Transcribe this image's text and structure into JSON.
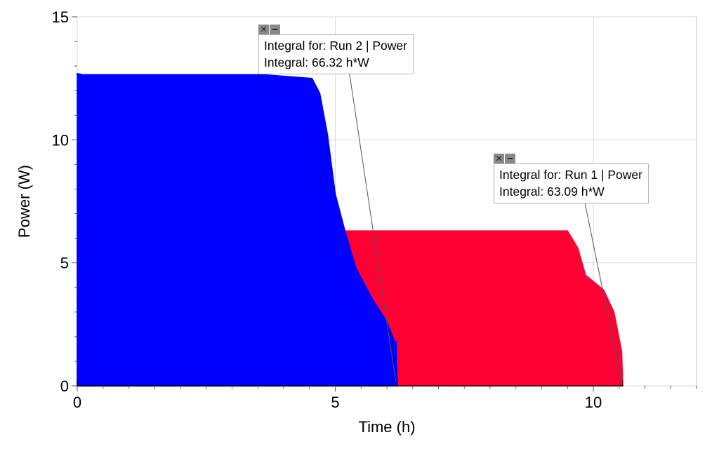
{
  "chart_data": {
    "type": "area",
    "xlabel": "Time (h)",
    "ylabel": "Power (W)",
    "xlim": [
      0,
      12
    ],
    "ylim": [
      0,
      15
    ],
    "xticks": [
      0,
      5,
      10
    ],
    "yticks": [
      0,
      5,
      10,
      15
    ],
    "grid": true,
    "series": [
      {
        "name": "Run 1",
        "color": "#ff0033",
        "x": [
          0,
          4.6,
          5.15,
          5.3,
          9.3,
          9.5,
          9.7,
          9.85,
          10.2,
          10.4,
          10.55,
          10.57
        ],
        "values": [
          6.3,
          6.3,
          6.3,
          6.3,
          6.3,
          6.3,
          5.6,
          4.5,
          3.9,
          3.0,
          1.4,
          0.0
        ]
      },
      {
        "name": "Run 2",
        "color": "#0000ff",
        "x": [
          0,
          0.1,
          3.6,
          4.55,
          4.7,
          4.85,
          5.0,
          5.2,
          5.4,
          5.7,
          6.0,
          6.15,
          6.18,
          6.2
        ],
        "values": [
          12.7,
          12.65,
          12.65,
          12.5,
          11.9,
          10.2,
          7.8,
          6.2,
          4.8,
          3.6,
          2.6,
          1.8,
          1.8,
          0.0
        ]
      }
    ],
    "annotations": [
      {
        "title": "Integral for: Run 2 | Power",
        "value": "Integral: 66.32 h*W",
        "run": "Run 2"
      },
      {
        "title": "Integral for: Run 1 | Power",
        "value": "Integral: 63.09 h*W",
        "run": "Run 1"
      }
    ]
  },
  "icons": {
    "close": "close-icon",
    "options": "menu-icon"
  }
}
